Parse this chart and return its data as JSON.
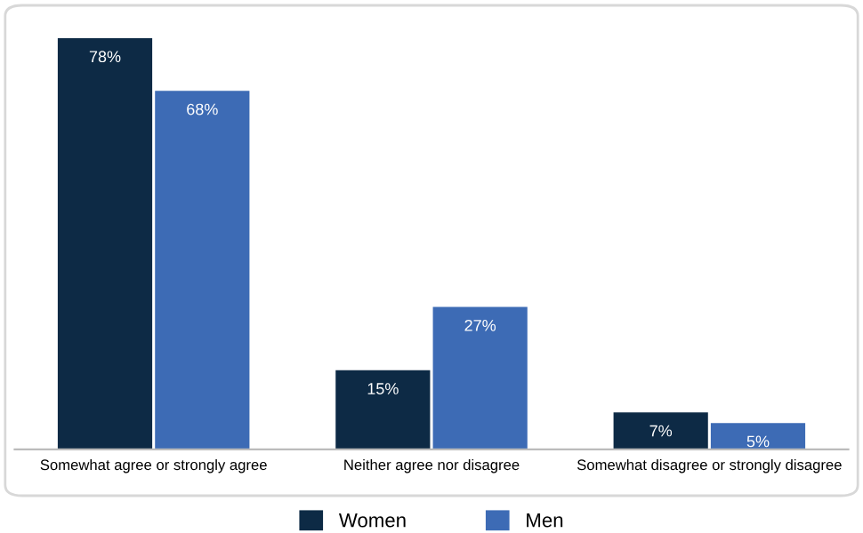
{
  "chart_data": {
    "type": "bar",
    "categories": [
      "Somewhat agree or strongly agree",
      "Neither agree nor disagree",
      "Somewhat disagree or strongly disagree"
    ],
    "series": [
      {
        "name": "Women",
        "color": "#0d2a45",
        "values": [
          78,
          15,
          7
        ],
        "value_labels": [
          "78%",
          "15%",
          "7%"
        ]
      },
      {
        "name": "Men",
        "color": "#3d6bb5",
        "values": [
          68,
          27,
          5
        ],
        "value_labels": [
          "68%",
          "27%",
          "5%"
        ]
      }
    ],
    "legend": "bottom",
    "grid": false
  }
}
